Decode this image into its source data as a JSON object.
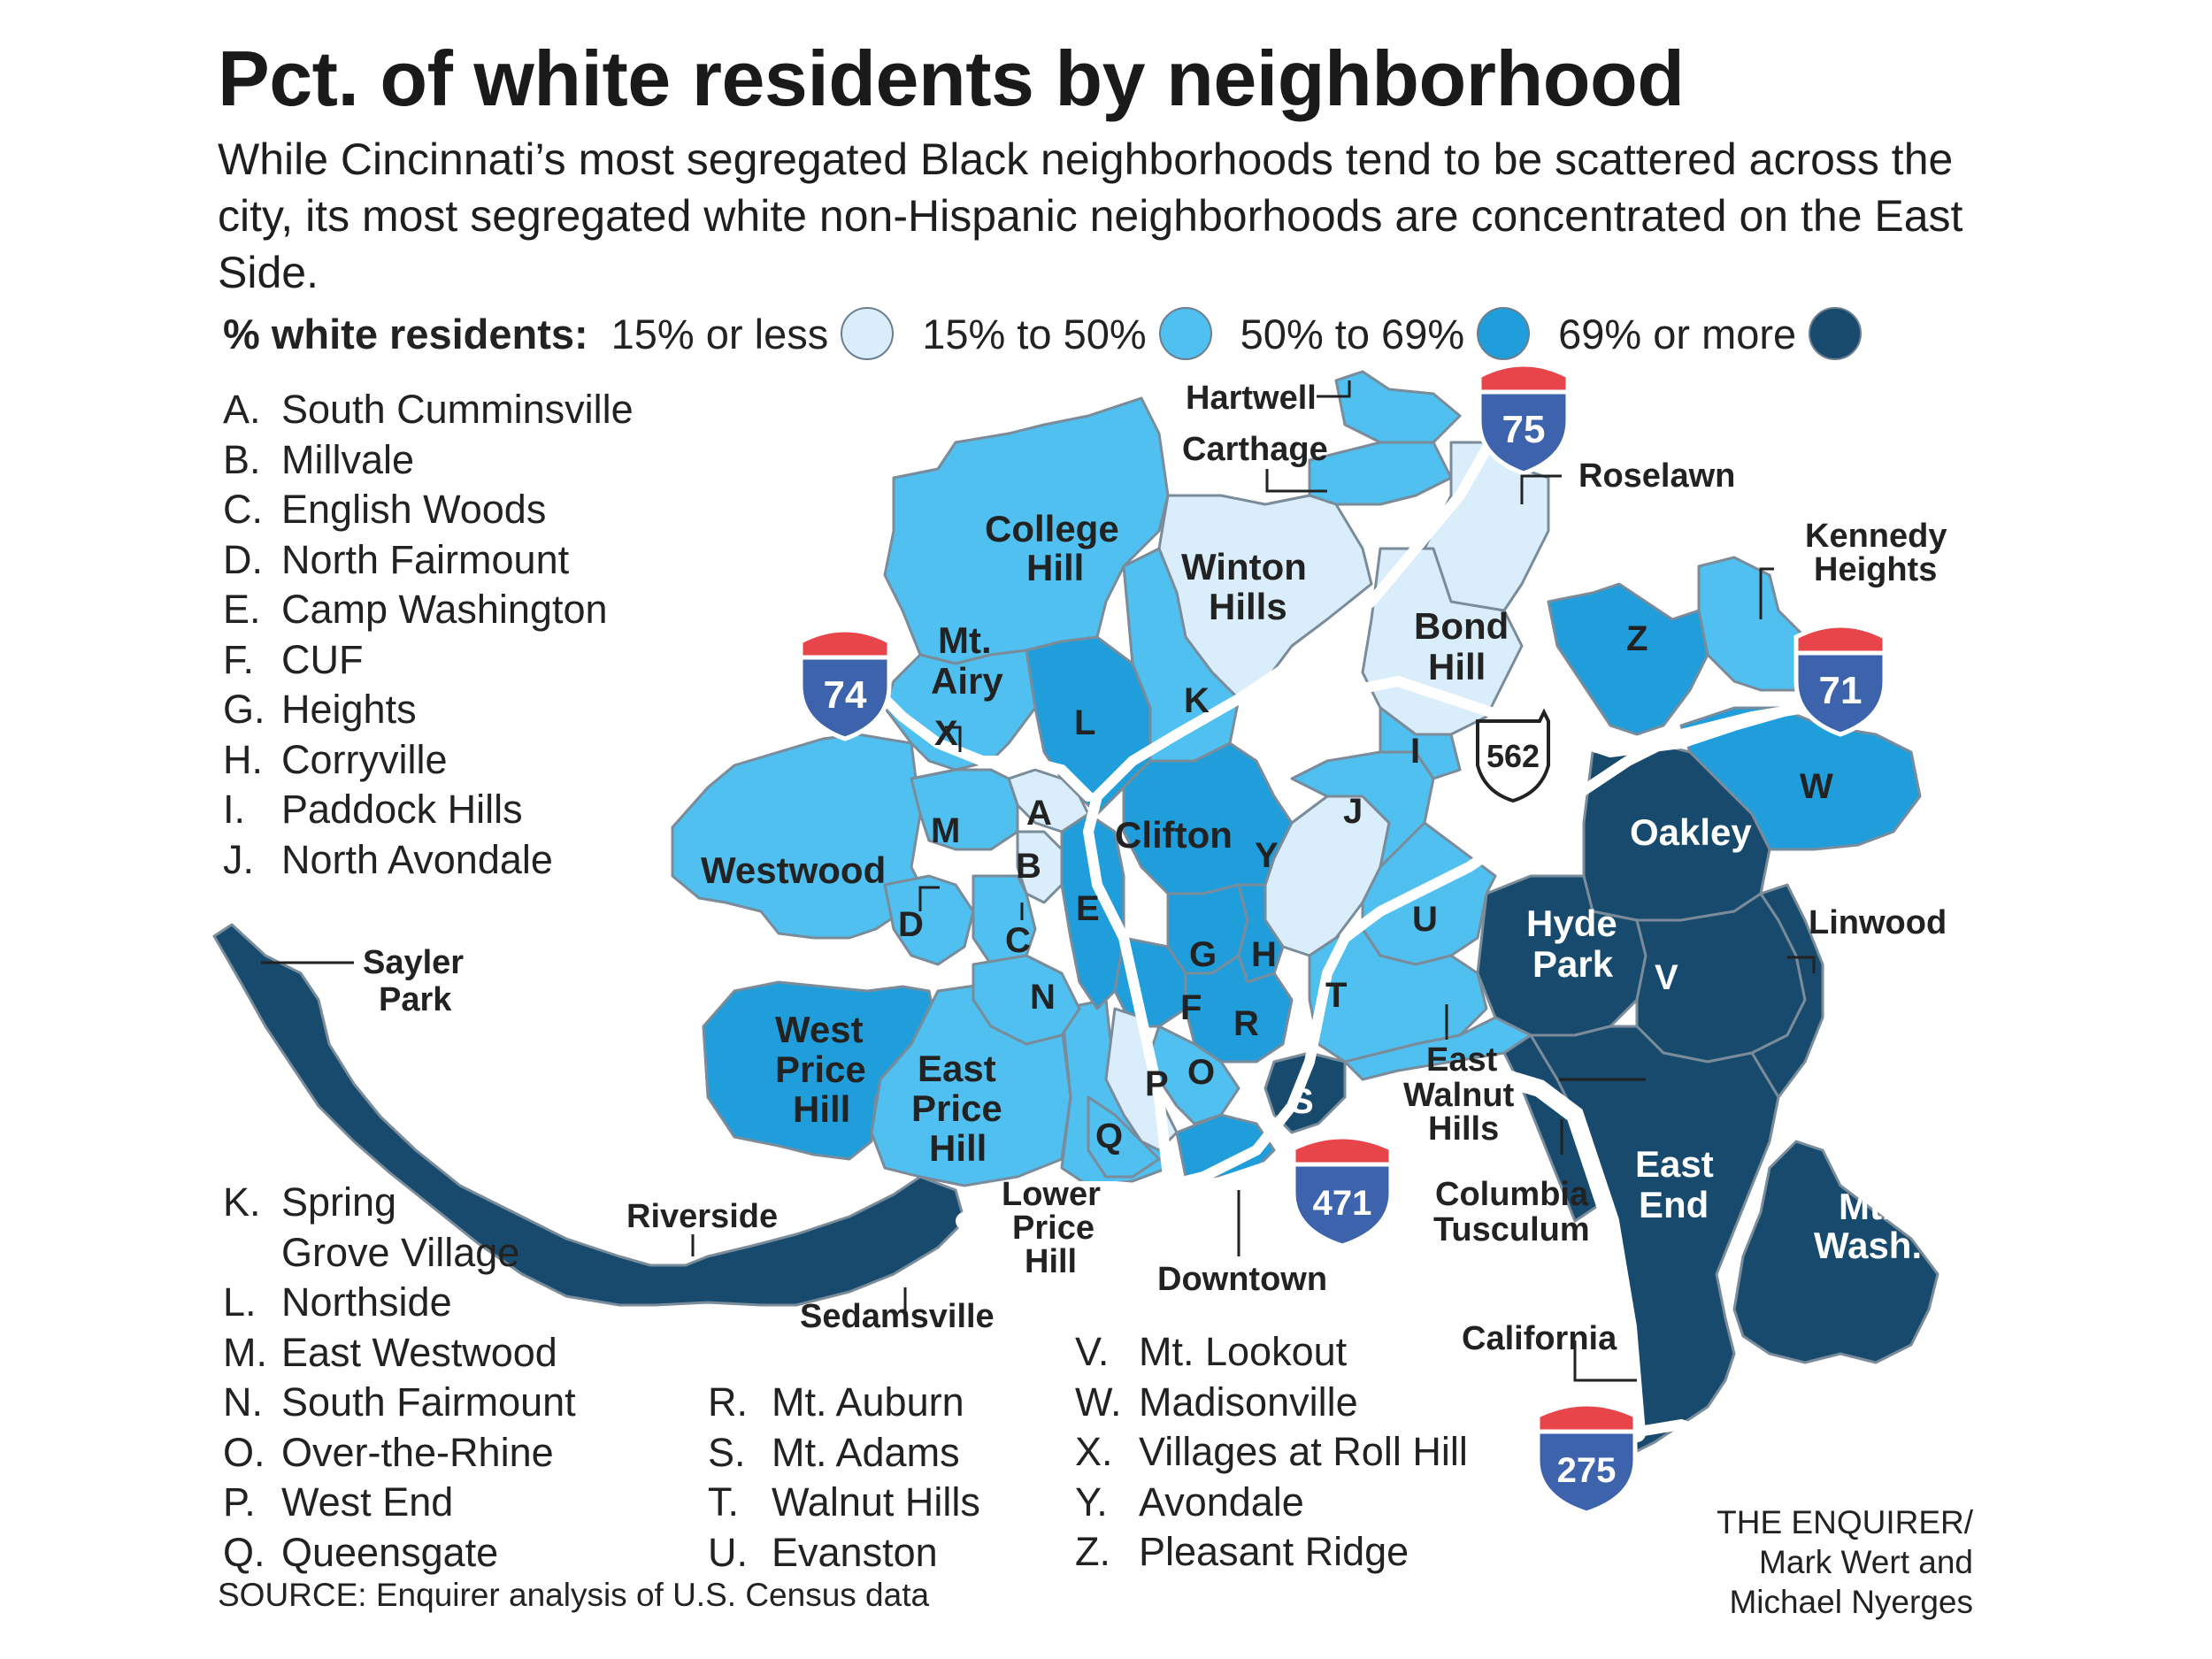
{
  "title": "Pct. of white residents by neighborhood",
  "subtitle": "While Cincinnati’s most segregated Black neighborhoods tend to be scattered across the city, its most segregated white non-Hispanic neighborhoods are concentrated on the East Side.",
  "legend": {
    "label": "% white residents:",
    "items": [
      {
        "label": "15% or less",
        "color": "#d9eefa"
      },
      {
        "label": "15% to 50%",
        "color": "#4fc0ef"
      },
      {
        "label": "50% to 69%",
        "color": "#1f9edb"
      },
      {
        "label": "69% or more",
        "color": "#174a6c"
      }
    ]
  },
  "colors": {
    "level_1": "#d9eefa",
    "level_2": "#4fc0ef",
    "level_3": "#1f9edb",
    "level_4": "#174a6c",
    "border": "#7a8b99",
    "road": "#ffffff",
    "shield_red": "#e8454a",
    "shield_blue": "#3e63ad"
  },
  "key_list_1": [
    {
      "letter": "A.",
      "name": "South Cumminsville"
    },
    {
      "letter": "B.",
      "name": "Millvale"
    },
    {
      "letter": "C.",
      "name": "English Woods"
    },
    {
      "letter": "D.",
      "name": "North Fairmount"
    },
    {
      "letter": "E.",
      "name": "Camp Washington"
    },
    {
      "letter": "F.",
      "name": "CUF"
    },
    {
      "letter": "G.",
      "name": "Heights"
    },
    {
      "letter": "H.",
      "name": "Corryville"
    },
    {
      "letter": "I.",
      "name": "Paddock Hills"
    },
    {
      "letter": "J.",
      "name": "North Avondale"
    }
  ],
  "key_list_2": [
    {
      "letter": "K.",
      "name": "Spring",
      "extra": "Grove Village"
    },
    {
      "letter": "L.",
      "name": "Northside"
    },
    {
      "letter": "M.",
      "name": "East Westwood"
    },
    {
      "letter": "N.",
      "name": "South Fairmount"
    },
    {
      "letter": "O.",
      "name": "Over-the-Rhine"
    },
    {
      "letter": "P.",
      "name": "West End"
    },
    {
      "letter": "Q.",
      "name": "Queensgate"
    }
  ],
  "key_list_3": [
    {
      "letter": "R.",
      "name": "Mt. Auburn"
    },
    {
      "letter": "S.",
      "name": "Mt. Adams"
    },
    {
      "letter": "T.",
      "name": "Walnut Hills"
    },
    {
      "letter": "U.",
      "name": "Evanston"
    }
  ],
  "key_list_4": [
    {
      "letter": "V.",
      "name": "Mt. Lookout"
    },
    {
      "letter": "W.",
      "name": "Madisonville"
    },
    {
      "letter": "X.",
      "name": "Villages at Roll Hill"
    },
    {
      "letter": "Y.",
      "name": "Avondale"
    },
    {
      "letter": "Z.",
      "name": "Pleasant Ridge"
    }
  ],
  "map_labels": {
    "hartwell": "Hartwell",
    "carthage": "Carthage",
    "roselawn": "Roselawn",
    "kennedy_heights_1": "Kennedy",
    "kennedy_heights_2": "Heights",
    "college_hill_1": "College",
    "college_hill_2": "Hill",
    "winton_hills_1": "Winton",
    "winton_hills_2": "Hills",
    "bond_hill_1": "Bond",
    "bond_hill_2": "Hill",
    "mt_airy_1": "Mt.",
    "mt_airy_2": "Airy",
    "westwood": "Westwood",
    "clifton": "Clifton",
    "oakley": "Oakley",
    "hyde_park_1": "Hyde",
    "hyde_park_2": "Park",
    "linwood": "Linwood",
    "sayler_park_1": "Sayler",
    "sayler_park_2": "Park",
    "west_price_hill_1": "West",
    "west_price_hill_2": "Price",
    "west_price_hill_3": "Hill",
    "east_price_hill_1": "East",
    "east_price_hill_2": "Price",
    "east_price_hill_3": "Hill",
    "east_walnut_hills_1": "East",
    "east_walnut_hills_2": "Walnut",
    "east_walnut_hills_3": "Hills",
    "columbia_tusculum_1": "Columbia",
    "columbia_tusculum_2": "Tusculum",
    "east_end_1": "East",
    "east_end_2": "End",
    "mt_wash_1": "Mt.",
    "mt_wash_2": "Wash.",
    "riverside": "Riverside",
    "sedamsville": "Sedamsville",
    "lower_price_hill_1": "Lower",
    "lower_price_hill_2": "Price",
    "lower_price_hill_3": "Hill",
    "downtown": "Downtown",
    "california": "California"
  },
  "map_letters": [
    "A",
    "B",
    "C",
    "D",
    "E",
    "F",
    "G",
    "H",
    "I",
    "J",
    "K",
    "L",
    "M",
    "N",
    "O",
    "P",
    "Q",
    "R",
    "S",
    "T",
    "U",
    "V",
    "W",
    "X",
    "Y",
    "Z"
  ],
  "shields": {
    "i75": "75",
    "i74": "74",
    "i71": "71",
    "i471": "471",
    "i275": "275",
    "oh562": "562"
  },
  "source": "SOURCE: Enquirer analysis of U.S. Census data",
  "credit": {
    "line1": "THE ENQUIRER/",
    "line2": "Mark Wert and",
    "line3": "Michael Nyerges"
  }
}
